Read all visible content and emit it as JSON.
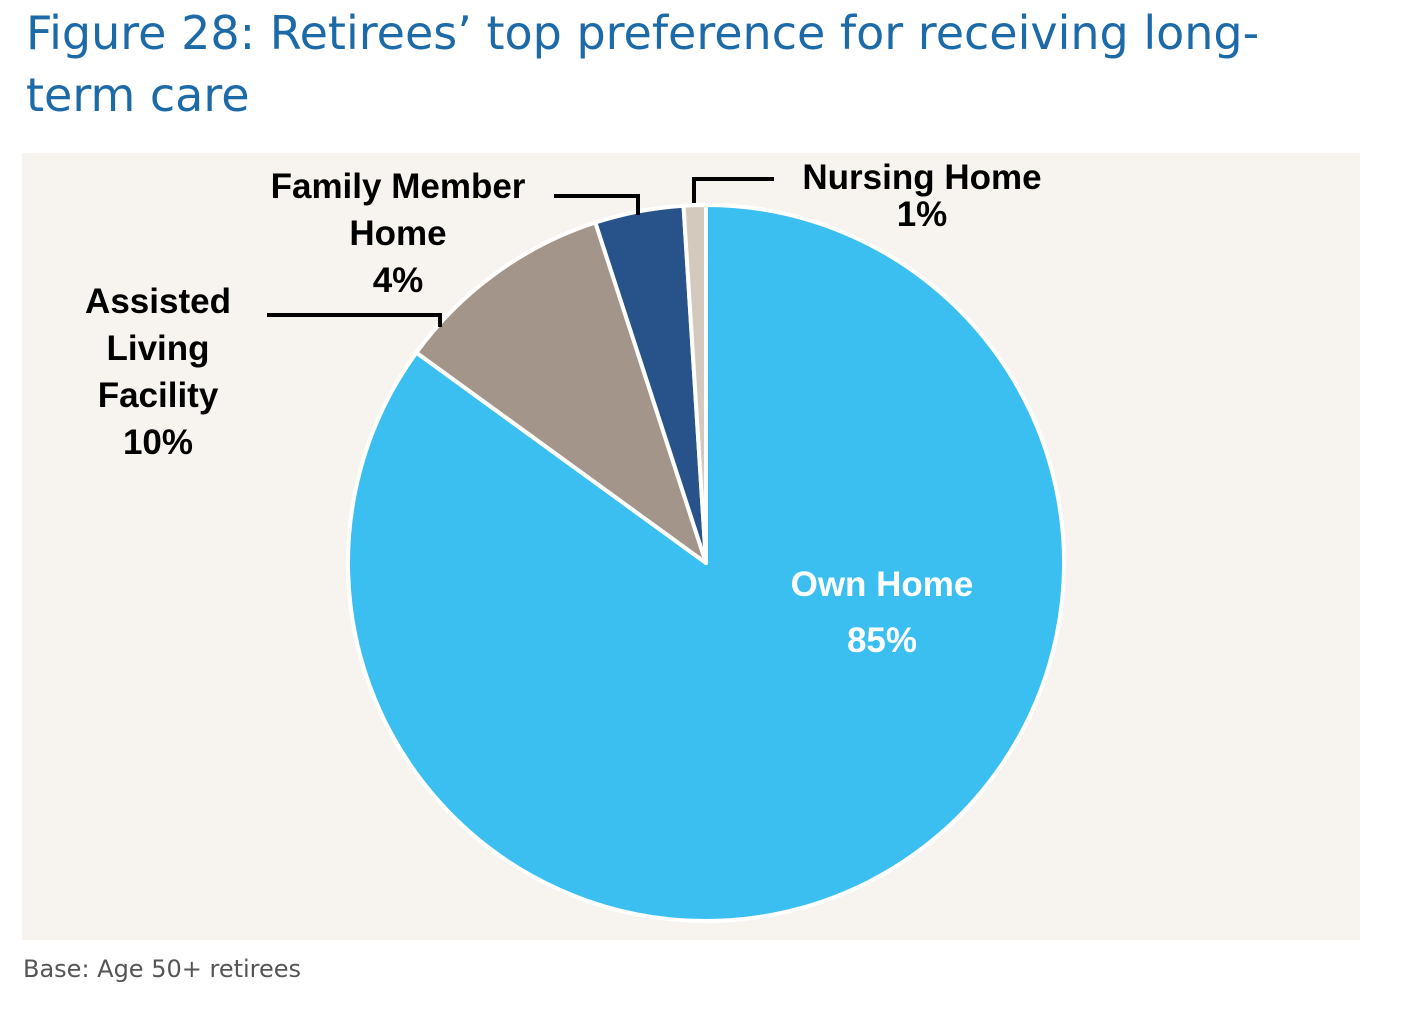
{
  "title": "Figure 28: Retirees’ top preference for receiving long-term care",
  "footnote": "Base: Age 50+ retirees",
  "chart_data": {
    "type": "pie",
    "title": "",
    "start_angle_deg": 0,
    "direction": "clockwise",
    "slices": [
      {
        "name": "Own Home",
        "value": 85,
        "label_lines": [
          "Own Home",
          "85%"
        ],
        "color": "#3bbff1",
        "label_color": "#ffffff"
      },
      {
        "name": "Assisted Living Facility",
        "value": 10,
        "label_lines": [
          "Assisted",
          "Living",
          "Facility",
          "10%"
        ],
        "color": "#a39589",
        "label_color": "#000000"
      },
      {
        "name": "Family Member Home",
        "value": 4,
        "label_lines": [
          "Family Member",
          "Home",
          "4%"
        ],
        "color": "#28538a",
        "label_color": "#000000"
      },
      {
        "name": "Nursing Home",
        "value": 1,
        "label_lines": [
          "Nursing Home",
          "1%"
        ],
        "color": "#d4c9bd",
        "label_color": "#000000"
      }
    ]
  }
}
